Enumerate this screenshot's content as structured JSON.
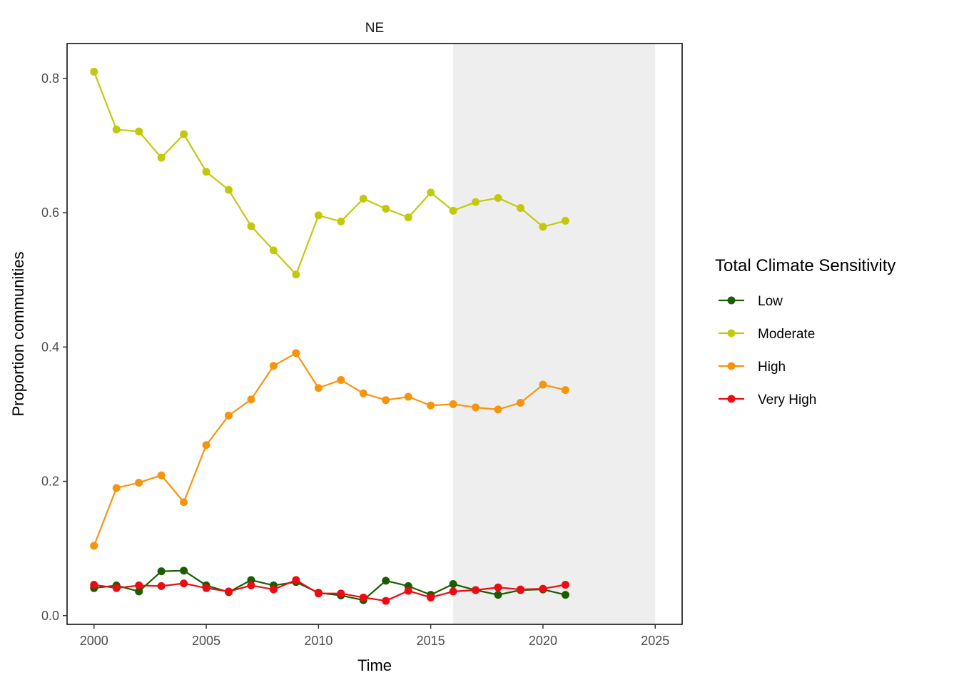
{
  "chart_data": {
    "type": "line",
    "facet_title": "NE",
    "xlabel": "Time",
    "ylabel": "Proportion communities",
    "xlim": [
      1998.8,
      2026.2
    ],
    "ylim": [
      -0.013,
      0.852
    ],
    "x_ticks": [
      2000,
      2005,
      2010,
      2015,
      2020,
      2025
    ],
    "y_ticks": [
      0.0,
      0.2,
      0.4,
      0.6,
      0.8
    ],
    "y_tick_labels": [
      "0.0",
      "0.2",
      "0.4",
      "0.6",
      "0.8"
    ],
    "shaded_region": {
      "x_start": 2016,
      "x_end": 2025,
      "color": "#eeeeee"
    },
    "legend": {
      "title": "Total Climate Sensitivity",
      "position": "right"
    },
    "x": [
      2000,
      2001,
      2002,
      2003,
      2004,
      2005,
      2006,
      2007,
      2008,
      2009,
      2010,
      2011,
      2012,
      2013,
      2014,
      2015,
      2016,
      2017,
      2018,
      2019,
      2020,
      2021
    ],
    "series": [
      {
        "name": "Low",
        "color": "#1a5c00",
        "values": [
          0.041,
          0.045,
          0.036,
          0.066,
          0.067,
          0.045,
          0.035,
          0.053,
          0.045,
          0.05,
          0.034,
          0.03,
          0.023,
          0.052,
          0.044,
          0.031,
          0.047,
          0.038,
          0.031,
          0.038,
          0.039,
          0.031
        ]
      },
      {
        "name": "Moderate",
        "color": "#c2c90d",
        "values": [
          0.81,
          0.724,
          0.721,
          0.682,
          0.717,
          0.661,
          0.634,
          0.58,
          0.544,
          0.508,
          0.596,
          0.587,
          0.621,
          0.606,
          0.593,
          0.63,
          0.603,
          0.616,
          0.622,
          0.607,
          0.579,
          0.588
        ]
      },
      {
        "name": "High",
        "color": "#f7940e",
        "values": [
          0.104,
          0.19,
          0.198,
          0.209,
          0.169,
          0.254,
          0.298,
          0.322,
          0.372,
          0.391,
          0.339,
          0.351,
          0.331,
          0.321,
          0.326,
          0.313,
          0.315,
          0.31,
          0.307,
          0.317,
          0.344,
          0.336
        ]
      },
      {
        "name": "Very High",
        "color": "#ee0a12",
        "values": [
          0.046,
          0.041,
          0.045,
          0.044,
          0.048,
          0.041,
          0.036,
          0.045,
          0.039,
          0.053,
          0.033,
          0.033,
          0.027,
          0.022,
          0.037,
          0.027,
          0.036,
          0.038,
          0.042,
          0.039,
          0.04,
          0.046
        ]
      }
    ]
  }
}
